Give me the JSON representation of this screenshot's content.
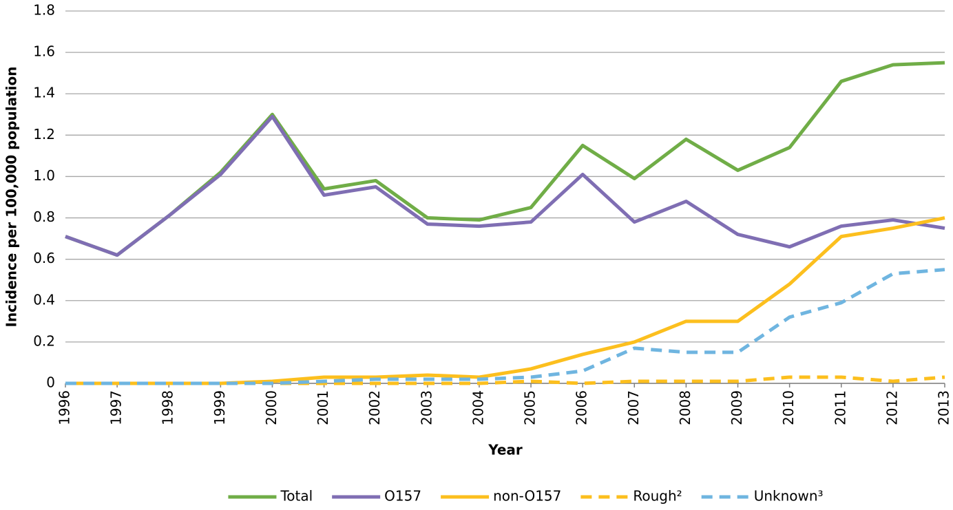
{
  "chart_data": {
    "type": "line",
    "y_label": "Incidence per 100,000 population",
    "x_label": "Year",
    "categories": [
      "1996",
      "1997",
      "1998",
      "1999",
      "2000",
      "2001",
      "2002",
      "2003",
      "2004",
      "2005",
      "2006",
      "2007",
      "2008",
      "2009",
      "2010",
      "2011",
      "2012",
      "2013"
    ],
    "series": [
      {
        "name": "Total",
        "color": "#70ad47",
        "dash": false,
        "values": [
          0.71,
          0.62,
          0.81,
          1.02,
          1.3,
          0.94,
          0.98,
          0.8,
          0.79,
          0.85,
          1.15,
          0.99,
          1.18,
          1.03,
          1.14,
          1.46,
          1.54,
          1.55
        ]
      },
      {
        "name": "O157",
        "color": "#7f6eb3",
        "dash": false,
        "values": [
          0.71,
          0.62,
          0.81,
          1.01,
          1.29,
          0.91,
          0.95,
          0.77,
          0.76,
          0.78,
          1.01,
          0.78,
          0.88,
          0.72,
          0.66,
          0.76,
          0.79,
          0.75
        ]
      },
      {
        "name": "non-O157",
        "color": "#fcbf1e",
        "dash": false,
        "values": [
          0,
          0,
          0,
          0,
          0.01,
          0.03,
          0.03,
          0.04,
          0.03,
          0.07,
          0.14,
          0.2,
          0.3,
          0.3,
          0.48,
          0.71,
          0.75,
          0.8
        ]
      },
      {
        "name": "Rough²",
        "color": "#fcbf1e",
        "dash": true,
        "values": [
          0,
          0,
          0,
          0,
          0,
          0,
          0,
          0,
          0,
          0.01,
          0,
          0.01,
          0.01,
          0.01,
          0.03,
          0.03,
          0.01,
          0.03
        ]
      },
      {
        "name": "Unknown³",
        "color": "#6fb5e0",
        "dash": true,
        "values": [
          0,
          0,
          0,
          0,
          0,
          0.01,
          0.02,
          0.02,
          0.02,
          0.03,
          0.06,
          0.17,
          0.15,
          0.15,
          0.32,
          0.39,
          0.53,
          0.55
        ]
      }
    ],
    "ylim": [
      0,
      1.8
    ],
    "yticks": [
      0,
      0.2,
      0.4,
      0.6,
      0.8,
      {
        "value": 1,
        "label": "1.0"
      },
      1.2,
      1.4,
      1.6,
      1.8
    ],
    "grid": true,
    "legend": "bottom"
  }
}
